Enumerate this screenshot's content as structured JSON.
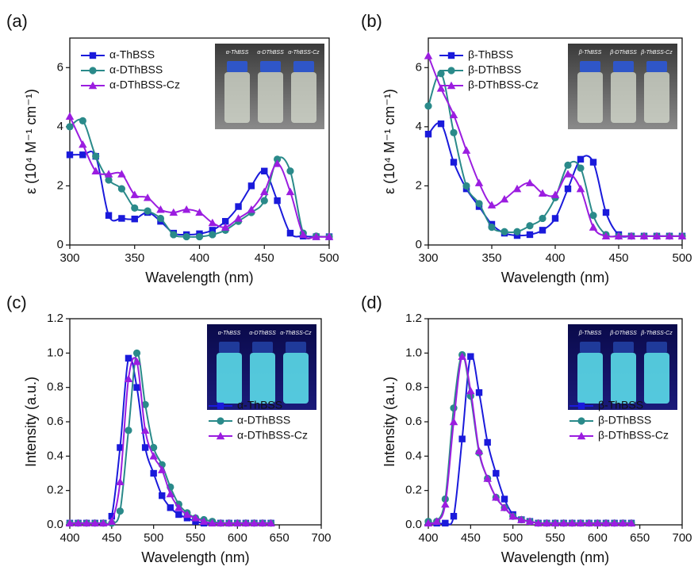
{
  "chart_data": [
    {
      "type": "line",
      "panel_label": "(a)",
      "xlabel": "Wavelength (nm)",
      "ylabel": "ε (10⁴ M⁻¹ cm⁻¹)",
      "xlim": [
        300,
        500
      ],
      "xticks": [
        300,
        350,
        400,
        450,
        500
      ],
      "ylim": [
        0,
        7
      ],
      "yticks": [
        0,
        2,
        4,
        6
      ],
      "legend": "upper left",
      "inset": "upper right",
      "inset_style": "daylight",
      "inset_labels": [
        "α-ThBSS",
        "α-DThBSS",
        "α-ThBSS-Cz"
      ],
      "x": [
        300,
        310,
        320,
        330,
        340,
        350,
        360,
        370,
        380,
        390,
        400,
        410,
        420,
        430,
        440,
        450,
        460,
        470,
        480,
        490,
        500
      ],
      "series": [
        {
          "name": "α-ThBSS",
          "color": "#1a1adb",
          "marker": "square",
          "values": [
            3.05,
            3.05,
            3.0,
            1.0,
            0.9,
            0.88,
            1.1,
            0.8,
            0.4,
            0.35,
            0.38,
            0.5,
            0.8,
            1.3,
            2.0,
            2.5,
            1.5,
            0.4,
            0.3,
            0.28,
            0.28
          ]
        },
        {
          "name": "α-DThBSS",
          "color": "#2a8a8a",
          "marker": "circle",
          "values": [
            4.0,
            4.2,
            3.0,
            2.2,
            1.9,
            1.25,
            1.15,
            0.9,
            0.35,
            0.28,
            0.28,
            0.35,
            0.5,
            0.8,
            1.1,
            1.5,
            2.9,
            2.5,
            0.4,
            0.3,
            0.28
          ]
        },
        {
          "name": "α-DThBSS-Cz",
          "color": "#9b1de0",
          "marker": "triangle",
          "values": [
            4.35,
            3.4,
            2.5,
            2.4,
            2.4,
            1.7,
            1.6,
            1.2,
            1.1,
            1.2,
            1.1,
            0.75,
            0.6,
            0.9,
            1.2,
            1.8,
            2.75,
            1.8,
            0.35,
            0.28,
            0.28
          ]
        }
      ]
    },
    {
      "type": "line",
      "panel_label": "(b)",
      "xlabel": "Wavelength (nm)",
      "ylabel": "ε (10⁴ M⁻¹ cm⁻¹)",
      "xlim": [
        300,
        500
      ],
      "xticks": [
        300,
        350,
        400,
        450,
        500
      ],
      "ylim": [
        0,
        7
      ],
      "yticks": [
        0,
        2,
        4,
        6
      ],
      "legend": "upper left",
      "inset": "upper right",
      "inset_style": "daylight",
      "inset_labels": [
        "β-ThBSS",
        "β-DThBSS",
        "β-ThBSS-Cz"
      ],
      "x": [
        300,
        310,
        320,
        330,
        340,
        350,
        360,
        370,
        380,
        390,
        400,
        410,
        420,
        430,
        440,
        450,
        460,
        470,
        480,
        490,
        500
      ],
      "series": [
        {
          "name": "β-ThBSS",
          "color": "#1a1adb",
          "marker": "square",
          "values": [
            3.75,
            4.1,
            2.8,
            1.9,
            1.3,
            0.7,
            0.4,
            0.32,
            0.35,
            0.5,
            0.9,
            1.9,
            2.9,
            2.8,
            1.1,
            0.35,
            0.3,
            0.3,
            0.3,
            0.3,
            0.3
          ]
        },
        {
          "name": "β-DThBSS",
          "color": "#2a8a8a",
          "marker": "circle",
          "values": [
            4.7,
            5.8,
            3.8,
            2.0,
            1.4,
            0.6,
            0.45,
            0.45,
            0.65,
            0.9,
            1.6,
            2.7,
            2.6,
            1.0,
            0.35,
            0.3,
            0.3,
            0.3,
            0.3,
            0.3,
            0.3
          ]
        },
        {
          "name": "β-DThBSS-Cz",
          "color": "#9b1de0",
          "marker": "triangle",
          "values": [
            6.4,
            5.3,
            4.4,
            3.2,
            2.1,
            1.35,
            1.55,
            1.9,
            2.1,
            1.75,
            1.7,
            2.4,
            1.9,
            0.6,
            0.3,
            0.3,
            0.3,
            0.3,
            0.3,
            0.3,
            0.3
          ]
        }
      ]
    },
    {
      "type": "line",
      "panel_label": "(c)",
      "xlabel": "Wavelength (nm)",
      "ylabel": "Intensity (a.u.)",
      "xlim": [
        400,
        700
      ],
      "xticks": [
        400,
        450,
        500,
        550,
        600,
        650,
        700
      ],
      "ylim": [
        0,
        1.2
      ],
      "yticks": [
        {
          "value": 0,
          "label": "0.0"
        },
        0.2,
        0.4,
        0.6,
        0.8,
        {
          "value": 1,
          "label": "1.0"
        },
        1.2
      ],
      "legend": "lower right",
      "inset": "upper right",
      "inset_style": "uv",
      "inset_labels": [
        "α-ThBSS",
        "α-DThBSS",
        "α-ThBSS-Cz"
      ],
      "x": [
        400,
        410,
        420,
        430,
        440,
        450,
        460,
        470,
        480,
        490,
        500,
        510,
        520,
        530,
        540,
        550,
        560,
        570,
        580,
        590,
        600,
        610,
        620,
        630,
        640
      ],
      "series": [
        {
          "name": "α-ThBSS",
          "color": "#1a1adb",
          "marker": "square",
          "values": [
            0.01,
            0.01,
            0.01,
            0.01,
            0.01,
            0.05,
            0.45,
            0.97,
            0.8,
            0.45,
            0.3,
            0.17,
            0.1,
            0.06,
            0.04,
            0.02,
            0.01,
            0.01,
            0.01,
            0.01,
            0.01,
            0.01,
            0.01,
            0.01,
            0.01
          ]
        },
        {
          "name": "α-DThBSS",
          "color": "#2a8a8a",
          "marker": "circle",
          "values": [
            0.01,
            0.01,
            0.01,
            0.01,
            0.01,
            0.01,
            0.08,
            0.55,
            1.0,
            0.7,
            0.45,
            0.35,
            0.22,
            0.12,
            0.07,
            0.04,
            0.03,
            0.02,
            0.01,
            0.01,
            0.01,
            0.01,
            0.01,
            0.01,
            0.01
          ]
        },
        {
          "name": "α-DThBSS-Cz",
          "color": "#9b1de0",
          "marker": "triangle",
          "values": [
            0.01,
            0.01,
            0.01,
            0.01,
            0.01,
            0.02,
            0.25,
            0.85,
            0.95,
            0.55,
            0.4,
            0.32,
            0.18,
            0.1,
            0.06,
            0.04,
            0.02,
            0.01,
            0.01,
            0.01,
            0.01,
            0.01,
            0.01,
            0.01,
            0.01
          ]
        }
      ]
    },
    {
      "type": "line",
      "panel_label": "(d)",
      "xlabel": "Wavelength (nm)",
      "ylabel": "Intensity (a.u.)",
      "xlim": [
        400,
        700
      ],
      "xticks": [
        400,
        450,
        500,
        550,
        600,
        650,
        700
      ],
      "ylim": [
        0,
        1.2
      ],
      "yticks": [
        {
          "value": 0,
          "label": "0.0"
        },
        0.2,
        0.4,
        0.6,
        0.8,
        {
          "value": 1,
          "label": "1.0"
        },
        1.2
      ],
      "legend": "lower right",
      "inset": "upper right",
      "inset_style": "uv",
      "inset_labels": [
        "β-ThBSS",
        "β-DThBSS",
        "β-ThBSS-Cz"
      ],
      "x": [
        400,
        410,
        420,
        430,
        440,
        450,
        460,
        470,
        480,
        490,
        500,
        510,
        520,
        530,
        540,
        550,
        560,
        570,
        580,
        590,
        600,
        610,
        620,
        630,
        640
      ],
      "series": [
        {
          "name": "β-ThBSS",
          "color": "#1a1adb",
          "marker": "square",
          "values": [
            0.01,
            0.01,
            0.01,
            0.05,
            0.5,
            0.98,
            0.77,
            0.48,
            0.3,
            0.15,
            0.06,
            0.03,
            0.02,
            0.01,
            0.01,
            0.01,
            0.01,
            0.01,
            0.01,
            0.01,
            0.01,
            0.01,
            0.01,
            0.01,
            0.01
          ]
        },
        {
          "name": "β-DThBSS",
          "color": "#2a8a8a",
          "marker": "circle",
          "values": [
            0.02,
            0.02,
            0.15,
            0.68,
            0.99,
            0.75,
            0.42,
            0.27,
            0.16,
            0.1,
            0.05,
            0.03,
            0.02,
            0.01,
            0.01,
            0.01,
            0.01,
            0.01,
            0.01,
            0.01,
            0.01,
            0.01,
            0.01,
            0.01,
            0.01
          ]
        },
        {
          "name": "β-DThBSS-Cz",
          "color": "#9b1de0",
          "marker": "triangle",
          "values": [
            0.01,
            0.02,
            0.12,
            0.6,
            0.98,
            0.78,
            0.43,
            0.27,
            0.16,
            0.1,
            0.05,
            0.03,
            0.02,
            0.01,
            0.01,
            0.01,
            0.01,
            0.01,
            0.01,
            0.01,
            0.01,
            0.01,
            0.01,
            0.01,
            0.01
          ]
        }
      ]
    }
  ]
}
